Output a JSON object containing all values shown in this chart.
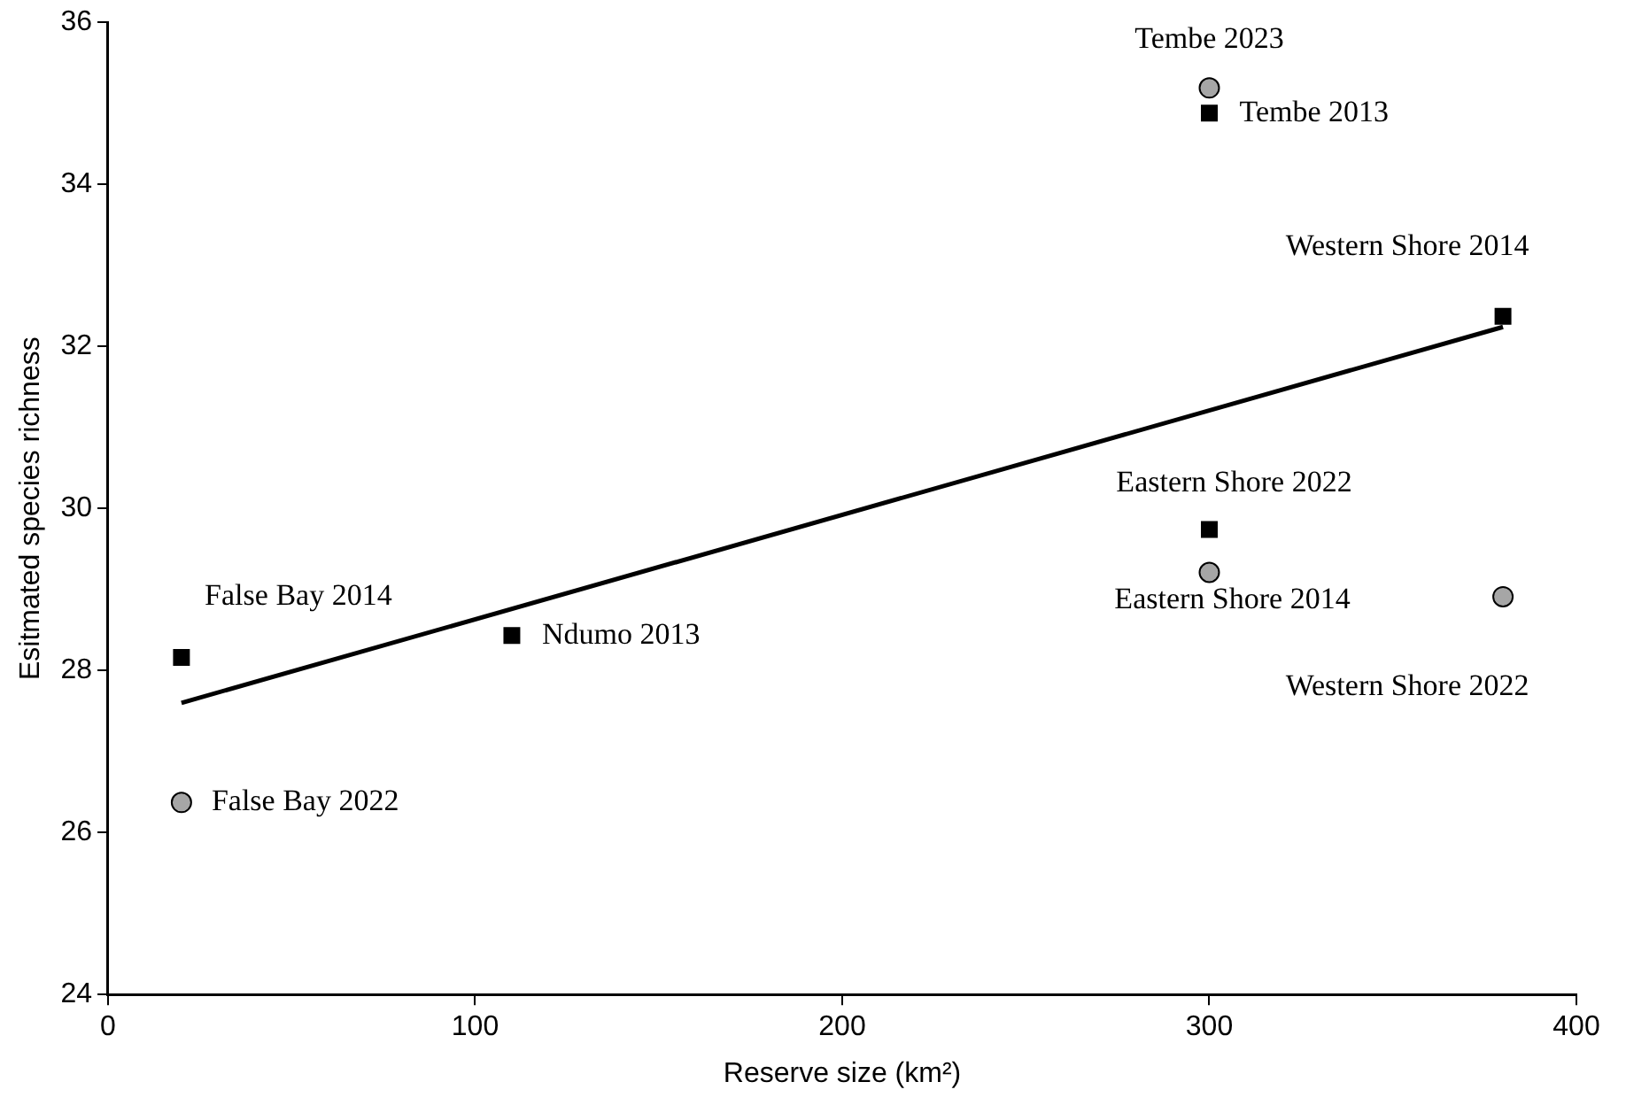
{
  "chart_data": {
    "type": "scatter",
    "xlabel": "Reserve size (km²)",
    "ylabel": "Esitmated species richness",
    "xlim": [
      0,
      400
    ],
    "xticks": [
      0,
      100,
      200,
      300,
      400
    ],
    "ylim": [
      24,
      36
    ],
    "yticks": [
      24,
      26,
      28,
      30,
      32,
      34,
      36
    ],
    "grid": false,
    "legend": false,
    "series": [
      {
        "type": "scatter",
        "marker": "square",
        "color": "#000000",
        "x": [
          20,
          110,
          300,
          300,
          380
        ],
        "values": [
          28.16,
          28.43,
          34.88,
          29.74,
          32.37
        ]
      },
      {
        "type": "scatter",
        "marker": "circle",
        "color": "#a6a6a6",
        "x": [
          20,
          300,
          300,
          380
        ],
        "values": [
          26.37,
          35.19,
          29.21,
          28.91
        ]
      },
      {
        "type": "line",
        "marker": "none",
        "color": "#000000",
        "x": [
          20,
          380
        ],
        "values": [
          27.6,
          32.24
        ]
      }
    ],
    "annotations": [
      {
        "text": "False Bay 2014",
        "x": 20,
        "y": 28.16
      },
      {
        "text": "False Bay 2022",
        "x": 20,
        "y": 26.37
      },
      {
        "text": "Ndumo 2013",
        "x": 110,
        "y": 28.43
      },
      {
        "text": "Tembe 2023",
        "x": 300,
        "y": 35.19
      },
      {
        "text": "Tembe 2013",
        "x": 300,
        "y": 34.88
      },
      {
        "text": "Western Shore 2014",
        "x": 380,
        "y": 32.37
      },
      {
        "text": "Eastern Shore 2022",
        "x": 300,
        "y": 29.74
      },
      {
        "text": "Eastern Shore 2014",
        "x": 300,
        "y": 29.21
      },
      {
        "text": "Western Shore 2022",
        "x": 380,
        "y": 28.91
      }
    ]
  }
}
